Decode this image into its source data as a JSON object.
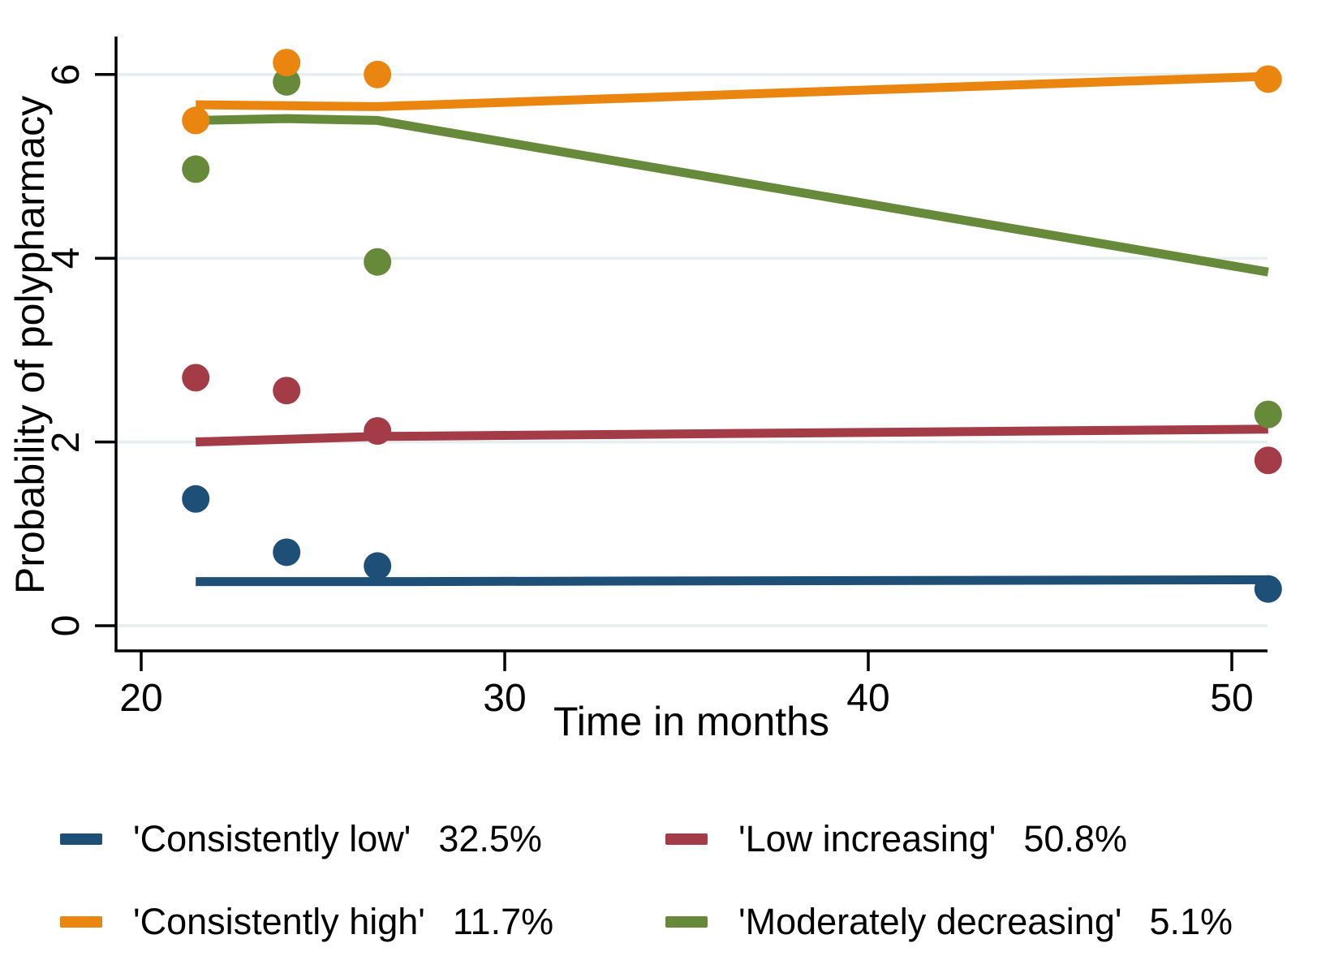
{
  "chart_data": {
    "type": "line",
    "title": "",
    "xlabel": "Time in months",
    "ylabel": "Probability of polypharmacy",
    "xlim": [
      19.3,
      51.2
    ],
    "ylim": [
      -0.27,
      6.41
    ],
    "xticks": [
      20,
      30,
      40,
      50
    ],
    "yticks": [
      0,
      2,
      4,
      6
    ],
    "xtick_labels": [
      "20",
      "30",
      "40",
      "50"
    ],
    "ytick_labels_top_to_bottom": [
      "6",
      "4",
      "2",
      "0"
    ],
    "grid": "horizontal-only",
    "legend_position": "bottom-two-columns",
    "measurement_occasions_months": [
      21.5,
      24,
      26.5,
      51
    ],
    "series": [
      {
        "name": "'Consistently low'",
        "percent": "32.5%",
        "color": "#1e5077",
        "line": {
          "x": [
            21.5,
            24,
            26.5,
            51
          ],
          "y": [
            0.48,
            0.48,
            0.48,
            0.5
          ]
        },
        "points": {
          "x": [
            21.5,
            24,
            26.5,
            51
          ],
          "y": [
            1.38,
            0.8,
            0.65,
            0.4
          ]
        }
      },
      {
        "name": "'Low increasing'",
        "percent": "50.8%",
        "color": "#a33c46",
        "line": {
          "x": [
            21.5,
            24,
            26.5,
            51
          ],
          "y": [
            2.0,
            2.03,
            2.06,
            2.14
          ]
        },
        "points": {
          "x": [
            21.5,
            24,
            26.5,
            51
          ],
          "y": [
            2.7,
            2.56,
            2.12,
            1.8
          ]
        }
      },
      {
        "name": "'Consistently high'",
        "percent": "11.7%",
        "color": "#ea8610",
        "line": {
          "x": [
            21.5,
            24,
            26.5,
            51
          ],
          "y": [
            5.67,
            5.66,
            5.65,
            5.98
          ]
        },
        "points": {
          "x": [
            21.5,
            24,
            26.5,
            51
          ],
          "y": [
            5.5,
            6.13,
            6.0,
            5.95
          ]
        }
      },
      {
        "name": "'Moderately decreasing'",
        "percent": "5.1%",
        "color": "#67893a",
        "line": {
          "x": [
            21.5,
            24,
            26.5,
            51
          ],
          "y": [
            5.5,
            5.52,
            5.5,
            3.85
          ]
        },
        "points": {
          "x": [
            21.5,
            24,
            26.5,
            51
          ],
          "y": [
            4.97,
            5.92,
            3.96,
            2.3
          ]
        }
      }
    ],
    "style": {
      "axis_color": "#000000",
      "gridline_color": "#e6eef0",
      "background": "#ffffff",
      "line_width": 11,
      "marker_radius": 17
    }
  }
}
